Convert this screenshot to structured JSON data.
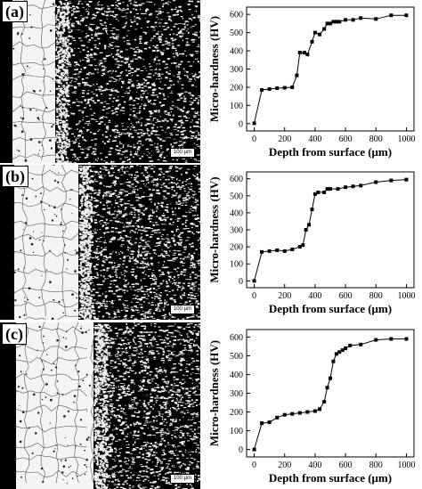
{
  "panels": [
    {
      "label": "(a)",
      "scale_bar": "100 μm"
    },
    {
      "label": "(b)",
      "scale_bar": "100 μm"
    },
    {
      "label": "(c)",
      "scale_bar": "100 μm"
    }
  ],
  "chart_data": [
    {
      "type": "line",
      "title": "",
      "xlabel": "Depth from surface (μm)",
      "ylabel": "Micro-hardness (HV)",
      "xlim": [
        -50,
        1050
      ],
      "ylim": [
        -40,
        640
      ],
      "xticks": [
        0,
        200,
        400,
        600,
        800,
        1000
      ],
      "yticks": [
        0,
        100,
        200,
        300,
        400,
        500,
        600
      ],
      "x": [
        0,
        50,
        100,
        150,
        200,
        250,
        280,
        300,
        330,
        350,
        380,
        400,
        430,
        460,
        480,
        500,
        520,
        540,
        560,
        600,
        650,
        700,
        800,
        900,
        1000
      ],
      "y": [
        2,
        185,
        190,
        195,
        197,
        200,
        265,
        390,
        390,
        380,
        450,
        500,
        490,
        520,
        550,
        550,
        560,
        560,
        560,
        570,
        570,
        580,
        575,
        595,
        595
      ]
    },
    {
      "type": "line",
      "title": "",
      "xlabel": "Depth from surface (μm)",
      "ylabel": "Micro-hardness (HV)",
      "xlim": [
        -50,
        1050
      ],
      "ylim": [
        -40,
        640
      ],
      "xticks": [
        0,
        200,
        400,
        600,
        800,
        1000
      ],
      "yticks": [
        0,
        100,
        200,
        300,
        400,
        500,
        600
      ],
      "x": [
        0,
        50,
        100,
        150,
        200,
        250,
        300,
        320,
        340,
        360,
        380,
        400,
        420,
        460,
        480,
        500,
        550,
        600,
        650,
        700,
        800,
        900,
        1000
      ],
      "y": [
        0,
        170,
        175,
        180,
        175,
        185,
        200,
        210,
        300,
        330,
        420,
        510,
        520,
        520,
        540,
        540,
        540,
        550,
        555,
        560,
        580,
        590,
        595
      ]
    },
    {
      "type": "line",
      "title": "",
      "xlabel": "Depth from surface (μm)",
      "ylabel": "Micro-hardness (HV)",
      "xlim": [
        -50,
        1050
      ],
      "ylim": [
        -40,
        640
      ],
      "xticks": [
        0,
        200,
        400,
        600,
        800,
        1000
      ],
      "yticks": [
        0,
        100,
        200,
        300,
        400,
        500,
        600
      ],
      "x": [
        0,
        50,
        100,
        150,
        200,
        250,
        300,
        350,
        400,
        430,
        460,
        480,
        500,
        520,
        540,
        560,
        580,
        600,
        630,
        700,
        800,
        900,
        1000
      ],
      "y": [
        0,
        140,
        145,
        170,
        185,
        190,
        195,
        200,
        205,
        215,
        255,
        330,
        380,
        470,
        510,
        520,
        530,
        540,
        555,
        560,
        585,
        590,
        590
      ]
    }
  ]
}
